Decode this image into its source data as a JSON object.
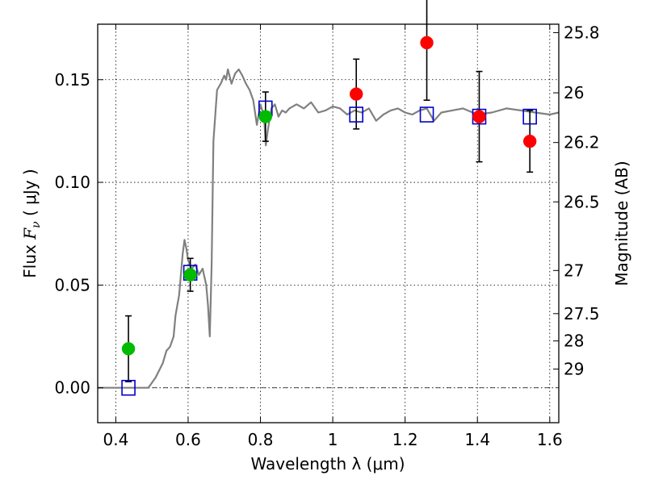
{
  "chart_data": {
    "type": "scatter",
    "title": "",
    "xlabel": "Wavelength  λ (μm)",
    "ylabel": "Flux  F_ν  ( μJy )",
    "ylabel_right": "Magnitude (AB)",
    "xlim": [
      0.35,
      1.625
    ],
    "ylim": [
      -0.017,
      0.177
    ],
    "x_ticks": [
      0.4,
      0.6,
      0.8,
      1.0,
      1.2,
      1.4,
      1.6
    ],
    "x_tick_labels": [
      "0.4",
      "0.6",
      "0.8",
      "1",
      "1.2",
      "1.4",
      "1.6"
    ],
    "y_ticks": [
      0.0,
      0.05,
      0.1,
      0.15
    ],
    "y_tick_labels": [
      "0.00",
      "0.05",
      "0.10",
      "0.15"
    ],
    "right_ticks": [
      {
        "label": "25.8",
        "flux": 0.1729
      },
      {
        "label": "26",
        "flux": 0.1436
      },
      {
        "label": "26.2",
        "flux": 0.1194
      },
      {
        "label": "26.5",
        "flux": 0.0905
      },
      {
        "label": "27",
        "flux": 0.0571
      },
      {
        "label": "27.5",
        "flux": 0.0361
      },
      {
        "label": "28",
        "flux": 0.0228
      },
      {
        "label": "29",
        "flux": 0.0091
      }
    ],
    "grid": true,
    "zero_line": true,
    "colors": {
      "template": "#808080",
      "green": "#00bb00",
      "red": "#ff0000",
      "box": "#0000cc",
      "errorbar": "#000000"
    },
    "series": [
      {
        "kind": "line",
        "x": [
          0.35,
          0.49,
          0.51,
          0.53,
          0.54,
          0.55,
          0.56,
          0.565,
          0.57,
          0.575,
          0.58,
          0.585,
          0.59,
          0.595,
          0.6,
          0.61,
          0.62,
          0.63,
          0.64,
          0.65,
          0.655,
          0.66,
          0.665,
          0.67,
          0.68,
          0.69,
          0.7,
          0.705,
          0.71,
          0.72,
          0.73,
          0.74,
          0.75,
          0.76,
          0.77,
          0.78,
          0.79,
          0.8,
          0.81,
          0.815,
          0.82,
          0.83,
          0.84,
          0.85,
          0.86,
          0.87,
          0.88,
          0.9,
          0.92,
          0.94,
          0.96,
          0.98,
          1.0,
          1.02,
          1.04,
          1.06,
          1.08,
          1.1,
          1.12,
          1.14,
          1.16,
          1.18,
          1.2,
          1.22,
          1.24,
          1.26,
          1.28,
          1.3,
          1.33,
          1.36,
          1.4,
          1.44,
          1.48,
          1.52,
          1.56,
          1.6,
          1.625
        ],
        "y": [
          0.0,
          0.0,
          0.005,
          0.012,
          0.018,
          0.02,
          0.025,
          0.035,
          0.04,
          0.045,
          0.055,
          0.065,
          0.072,
          0.068,
          0.062,
          0.058,
          0.06,
          0.055,
          0.058,
          0.05,
          0.04,
          0.025,
          0.06,
          0.12,
          0.145,
          0.148,
          0.152,
          0.15,
          0.155,
          0.148,
          0.153,
          0.155,
          0.152,
          0.148,
          0.145,
          0.14,
          0.128,
          0.138,
          0.132,
          0.118,
          0.125,
          0.136,
          0.138,
          0.132,
          0.135,
          0.134,
          0.136,
          0.138,
          0.136,
          0.139,
          0.134,
          0.135,
          0.137,
          0.136,
          0.133,
          0.135,
          0.134,
          0.136,
          0.13,
          0.133,
          0.135,
          0.136,
          0.134,
          0.133,
          0.135,
          0.136,
          0.13,
          0.134,
          0.135,
          0.136,
          0.133,
          0.134,
          0.136,
          0.135,
          0.134,
          0.133,
          0.134
        ]
      },
      {
        "kind": "points",
        "marker": "circle",
        "color": "green",
        "points": [
          {
            "x": 0.435,
            "y": 0.019,
            "err": 0.016
          },
          {
            "x": 0.606,
            "y": 0.055,
            "err": 0.008
          },
          {
            "x": 0.814,
            "y": 0.132,
            "err": 0.012
          }
        ]
      },
      {
        "kind": "points",
        "marker": "circle",
        "color": "red",
        "points": [
          {
            "x": 1.065,
            "y": 0.143,
            "err": 0.017
          },
          {
            "x": 1.26,
            "y": 0.168,
            "err": 0.028
          },
          {
            "x": 1.405,
            "y": 0.132,
            "err": 0.022
          },
          {
            "x": 1.545,
            "y": 0.12,
            "err": 0.015
          }
        ]
      },
      {
        "kind": "points",
        "marker": "square-open",
        "color": "box",
        "points": [
          {
            "x": 0.435,
            "y": 0.0
          },
          {
            "x": 0.606,
            "y": 0.056
          },
          {
            "x": 0.814,
            "y": 0.136
          },
          {
            "x": 1.065,
            "y": 0.133
          },
          {
            "x": 1.26,
            "y": 0.133
          },
          {
            "x": 1.405,
            "y": 0.132
          },
          {
            "x": 1.545,
            "y": 0.132
          }
        ]
      }
    ]
  }
}
